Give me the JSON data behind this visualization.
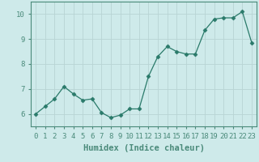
{
  "x": [
    0,
    1,
    2,
    3,
    4,
    5,
    6,
    7,
    8,
    9,
    10,
    11,
    12,
    13,
    14,
    15,
    16,
    17,
    18,
    19,
    20,
    21,
    22,
    23
  ],
  "y": [
    6.0,
    6.3,
    6.6,
    7.1,
    6.8,
    6.55,
    6.6,
    6.05,
    5.85,
    5.95,
    6.2,
    6.2,
    7.5,
    8.3,
    8.7,
    8.5,
    8.4,
    8.4,
    9.35,
    9.8,
    9.85,
    9.85,
    10.1,
    8.85
  ],
  "line_color": "#2a7a6a",
  "marker": "D",
  "marker_size": 2.5,
  "xlabel": "Humidex (Indice chaleur)",
  "xlim": [
    -0.5,
    23.5
  ],
  "ylim": [
    5.5,
    10.5
  ],
  "yticks": [
    6,
    7,
    8,
    9,
    10
  ],
  "xticks": [
    0,
    1,
    2,
    3,
    4,
    5,
    6,
    7,
    8,
    9,
    10,
    11,
    12,
    13,
    14,
    15,
    16,
    17,
    18,
    19,
    20,
    21,
    22,
    23
  ],
  "bg_color": "#ceeaea",
  "grid_color": "#b8d4d4",
  "tick_label_fontsize": 6.5,
  "xlabel_fontsize": 7.5,
  "spine_color": "#4a8a7a"
}
